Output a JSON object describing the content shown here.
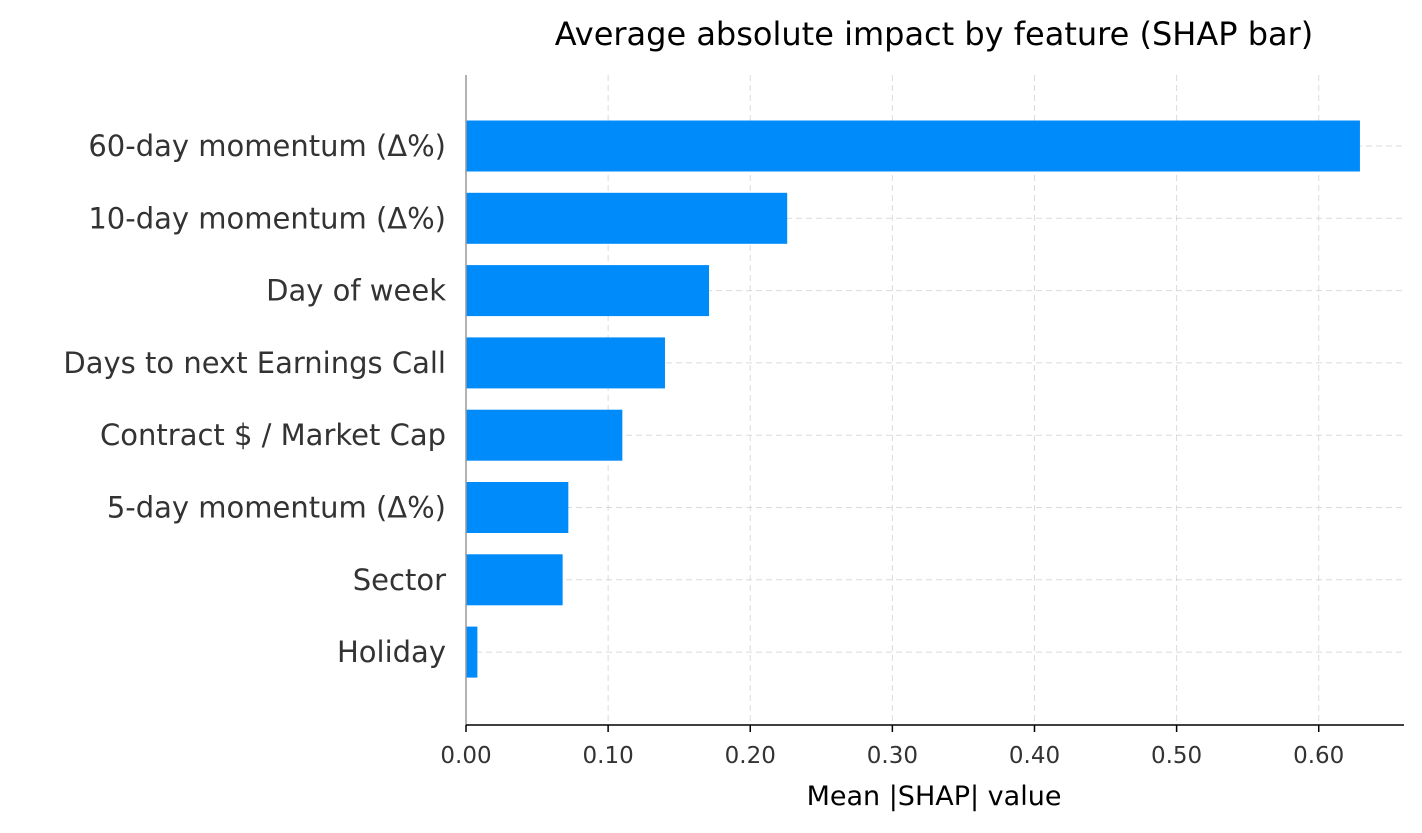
{
  "chart_data": {
    "type": "bar",
    "orientation": "horizontal",
    "title": "Average absolute impact by feature (SHAP bar)",
    "xlabel": "Mean |SHAP| value",
    "ylabel": "",
    "categories": [
      "60-day momentum (Δ%)",
      "10-day momentum (Δ%)",
      "Day of week",
      "Days to next Earnings Call",
      "Contract $ / Market Cap",
      "5-day momentum (Δ%)",
      "Sector",
      "Holiday"
    ],
    "values": [
      0.629,
      0.226,
      0.171,
      0.14,
      0.11,
      0.072,
      0.068,
      0.008
    ],
    "xlim": [
      0,
      0.66
    ],
    "xticks": [
      0.0,
      0.1,
      0.2,
      0.3,
      0.4,
      0.5,
      0.6
    ],
    "xtick_labels": [
      "0.00",
      "0.10",
      "0.20",
      "0.30",
      "0.40",
      "0.50",
      "0.60"
    ],
    "grid": true,
    "bar_color": "#008bfb"
  }
}
